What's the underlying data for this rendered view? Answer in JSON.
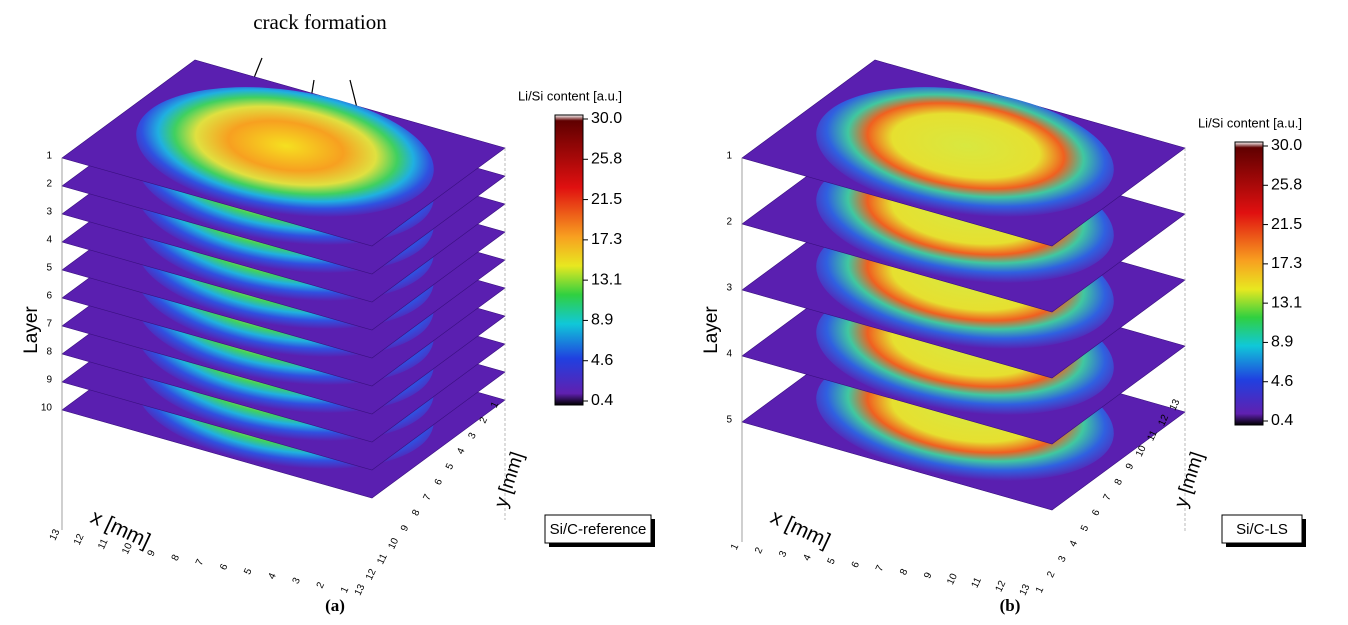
{
  "annotation": "crack formation",
  "panels": [
    {
      "caption": "(a)",
      "sample": "Si/C-reference",
      "colorbar_title": "Li/Si content [a.u.]",
      "colorbar_ticks": [
        "30.0",
        "25.8",
        "21.5",
        "17.3",
        "13.1",
        "8.9",
        "4.6",
        "0.4"
      ],
      "z_label": "Layer",
      "layers": [
        "1",
        "2",
        "3",
        "4",
        "5",
        "6",
        "7",
        "8",
        "9",
        "10"
      ],
      "x_label": "x [mm]",
      "x_ticks": [
        "13",
        "12",
        "11",
        "10",
        "9",
        "8",
        "7",
        "6",
        "5",
        "4",
        "3",
        "2",
        "1"
      ],
      "y_label": "y [mm]",
      "y_ticks": [
        "13",
        "12",
        "11",
        "10",
        "9",
        "8",
        "7",
        "6",
        "5",
        "4",
        "3",
        "2",
        "1"
      ]
    },
    {
      "caption": "(b)",
      "sample": "Si/C-LS",
      "colorbar_title": "Li/Si content [a.u.]",
      "colorbar_ticks": [
        "30.0",
        "25.8",
        "21.5",
        "17.3",
        "13.1",
        "8.9",
        "4.6",
        "0.4"
      ],
      "z_label": "Layer",
      "layers": [
        "1",
        "2",
        "3",
        "4",
        "5"
      ],
      "x_label": "x [mm]",
      "x_ticks": [
        "1",
        "2",
        "3",
        "4",
        "5",
        "6",
        "7",
        "8",
        "9",
        "10",
        "11",
        "12",
        "13"
      ],
      "y_label": "y [mm]",
      "y_ticks": [
        "1",
        "2",
        "3",
        "4",
        "5",
        "6",
        "7",
        "8",
        "9",
        "10",
        "11",
        "12",
        "13"
      ]
    }
  ]
}
